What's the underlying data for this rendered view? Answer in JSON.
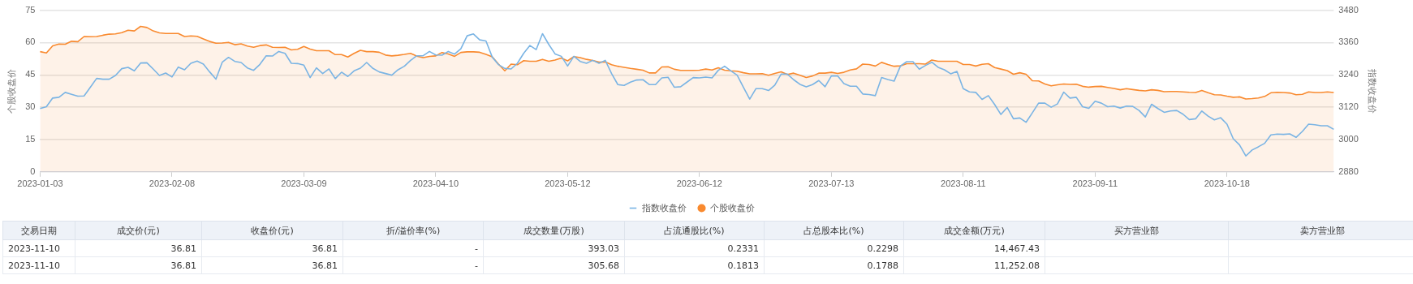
{
  "chart_data": {
    "type": "line",
    "ylabel": "个股收盘价",
    "y2label": "指数收盘价",
    "categories": [
      "2023-01-03",
      null,
      null,
      null,
      null,
      null,
      null,
      null,
      null,
      null,
      null,
      null,
      null,
      null,
      null,
      null,
      null,
      null,
      null,
      null,
      null,
      "2023-02-08",
      null,
      null,
      null,
      null,
      null,
      null,
      null,
      null,
      null,
      null,
      null,
      null,
      null,
      null,
      null,
      null,
      null,
      null,
      null,
      null,
      "2023-03-09",
      null,
      null,
      null,
      null,
      null,
      null,
      null,
      null,
      null,
      null,
      null,
      null,
      null,
      null,
      null,
      null,
      null,
      null,
      null,
      null,
      "2023-04-10",
      null,
      null,
      null,
      null,
      null,
      null,
      null,
      null,
      null,
      null,
      null,
      null,
      null,
      null,
      null,
      null,
      null,
      null,
      null,
      null,
      "2023-05-12",
      null,
      null,
      null,
      null,
      null,
      null,
      null,
      null,
      null,
      null,
      null,
      null,
      null,
      null,
      null,
      null,
      null,
      null,
      null,
      null,
      "2023-06-12",
      null,
      null,
      null,
      null,
      null,
      null,
      null,
      null,
      null,
      null,
      null,
      null,
      null,
      null,
      null,
      null,
      null,
      null,
      null,
      null,
      "2023-07-13",
      null,
      null,
      null,
      null,
      null,
      null,
      null,
      null,
      null,
      null,
      null,
      null,
      null,
      null,
      null,
      null,
      null,
      null,
      null,
      null,
      "2023-08-11",
      null,
      null,
      null,
      null,
      null,
      null,
      null,
      null,
      null,
      null,
      null,
      null,
      null,
      null,
      null,
      null,
      null,
      null,
      null,
      null,
      "2023-09-11",
      null,
      null,
      null,
      null,
      null,
      null,
      null,
      null,
      null,
      null,
      null,
      null,
      null,
      null,
      null,
      null,
      null,
      null,
      null,
      null,
      "2023-10-18",
      null,
      null,
      null,
      null,
      null,
      null,
      null,
      null,
      null,
      null,
      null,
      null,
      null,
      null,
      null,
      null,
      null
    ],
    "series": [
      {
        "name": "指数收盘价",
        "type": "line",
        "axis": "y2",
        "color": "#7ab4e4",
        "values": [
          3115,
          3122,
          3154,
          3157,
          3175,
          3168,
          3161,
          3162,
          3194,
          3227,
          3224,
          3224,
          3238,
          3263,
          3268,
          3255,
          3284,
          3285,
          3262,
          3238,
          3247,
          3232,
          3269,
          3259,
          3283,
          3291,
          3280,
          3251,
          3224,
          3287,
          3305,
          3290,
          3286,
          3266,
          3257,
          3279,
          3311,
          3310,
          3327,
          3320,
          3283,
          3282,
          3276,
          3230,
          3266,
          3245,
          3262,
          3226,
          3250,
          3234,
          3255,
          3265,
          3286,
          3264,
          3251,
          3245,
          3239,
          3259,
          3272,
          3294,
          3311,
          3311,
          3327,
          3314,
          3313,
          3327,
          3317,
          3337,
          3385,
          3392,
          3370,
          3366,
          3306,
          3278,
          3264,
          3262,
          3283,
          3320,
          3349,
          3334,
          3393,
          3353,
          3318,
          3309,
          3273,
          3309,
          3290,
          3283,
          3294,
          3283,
          3294,
          3245,
          3204,
          3201,
          3213,
          3221,
          3222,
          3204,
          3204,
          3229,
          3231,
          3194,
          3196,
          3213,
          3230,
          3229,
          3232,
          3229,
          3257,
          3272,
          3255,
          3239,
          3194,
          3150,
          3189,
          3189,
          3182,
          3202,
          3243,
          3243,
          3222,
          3205,
          3196,
          3204,
          3219,
          3196,
          3236,
          3236,
          3208,
          3198,
          3198,
          3169,
          3167,
          3163,
          3230,
          3223,
          3217,
          3273,
          3289,
          3289,
          3261,
          3275,
          3287,
          3268,
          3259,
          3244,
          3253,
          3189,
          3177,
          3175,
          3149,
          3163,
          3130,
          3093,
          3119,
          3077,
          3080,
          3064,
          3099,
          3135,
          3135,
          3120,
          3132,
          3176,
          3154,
          3157,
          3122,
          3116,
          3142,
          3135,
          3122,
          3124,
          3117,
          3124,
          3123,
          3108,
          3084,
          3131,
          3115,
          3101,
          3106,
          3108,
          3094,
          3074,
          3077,
          3106,
          3087,
          3073,
          3081,
          3057,
          3003,
          2980,
          2939,
          2961,
          2973,
          2986,
          3017,
          3020,
          3019,
          3021,
          3008,
          3030,
          3057,
          3055,
          3051,
          3051,
          3038
        ]
      },
      {
        "name": "个股收盘价",
        "type": "area",
        "color": "#f98a2f",
        "values": [
          55.8,
          55.2,
          58.5,
          59.3,
          59.2,
          60.6,
          60.4,
          62.8,
          62.7,
          62.8,
          63.4,
          63.9,
          64.0,
          64.6,
          65.7,
          65.4,
          67.5,
          67.0,
          65.4,
          64.5,
          64.2,
          64.2,
          64.2,
          62.8,
          63.1,
          62.9,
          61.7,
          60.5,
          59.7,
          59.8,
          60.1,
          59.0,
          59.4,
          58.4,
          57.8,
          58.6,
          58.9,
          57.8,
          57.7,
          57.8,
          56.6,
          56.9,
          58.2,
          57.0,
          56.2,
          56.2,
          56.2,
          54.4,
          54.4,
          53.3,
          55.0,
          56.4,
          55.8,
          55.8,
          55.5,
          54.2,
          53.8,
          54.1,
          54.5,
          55.0,
          53.7,
          53.0,
          53.6,
          53.8,
          55.4,
          54.7,
          53.6,
          55.4,
          55.7,
          55.7,
          55.5,
          54.5,
          53.4,
          50.0,
          46.9,
          50.0,
          49.7,
          51.6,
          51.3,
          51.3,
          52.2,
          51.3,
          51.9,
          52.8,
          51.5,
          53.5,
          53.0,
          52.2,
          51.7,
          50.9,
          51.0,
          49.7,
          49.0,
          48.5,
          48.0,
          47.6,
          47.2,
          45.9,
          45.9,
          48.7,
          48.8,
          47.6,
          47.1,
          47.1,
          47.1,
          47.2,
          47.7,
          47.3,
          48.3,
          47.2,
          46.9,
          46.7,
          46.0,
          45.5,
          45.5,
          45.6,
          44.8,
          45.7,
          46.4,
          45.2,
          45.8,
          44.8,
          43.8,
          44.5,
          45.8,
          45.8,
          46.2,
          45.7,
          46.2,
          47.3,
          47.8,
          50.0,
          49.8,
          49.1,
          50.8,
          49.8,
          49.0,
          49.2,
          50.2,
          50.2,
          50.2,
          50.0,
          51.9,
          51.3,
          51.3,
          51.3,
          51.3,
          49.8,
          49.8,
          49.1,
          49.9,
          50.2,
          48.4,
          47.7,
          47.0,
          45.3,
          46.0,
          45.3,
          42.3,
          42.2,
          40.8,
          39.9,
          40.4,
          40.8,
          40.6,
          40.7,
          39.7,
          39.3,
          39.6,
          39.7,
          39.2,
          38.7,
          38.1,
          38.6,
          38.2,
          37.8,
          37.6,
          38.1,
          37.8,
          37.2,
          37.3,
          37.3,
          37.1,
          36.9,
          36.8,
          37.8,
          36.7,
          35.8,
          35.7,
          35.1,
          34.6,
          34.8,
          33.8,
          34.0,
          34.3,
          35.0,
          36.7,
          36.9,
          36.8,
          36.6,
          35.8,
          36.0,
          37.1,
          36.8,
          36.8,
          37.1,
          36.8
        ]
      }
    ],
    "ylim": [
      0,
      75
    ],
    "yticks": [
      0,
      15,
      30,
      45,
      60,
      75
    ],
    "y2lim": [
      2880,
      3480
    ],
    "y2ticks": [
      2880,
      3000,
      3120,
      3240,
      3360,
      3480
    ],
    "grid": "y",
    "legend": "bottom",
    "marker": "none",
    "line_style": "solid",
    "annotations": [
      "交易日期",
      "成交价(元)",
      "收盘价(元)",
      "折/溢价率(%)",
      "成交数量(万股)",
      "占流通股比(%)",
      "占总股本比(%)",
      "成交金额(万元)",
      "买方营业部",
      "卖方营业部",
      "2023-11-10",
      "36.81",
      "36.81",
      "-",
      "393.03",
      "0.2331",
      "0.2298",
      "14,467.43",
      "2023-11-10",
      "36.81",
      "36.81",
      "-",
      "305.68",
      "0.1813",
      "0.1788",
      "11,252.08"
    ]
  }
}
